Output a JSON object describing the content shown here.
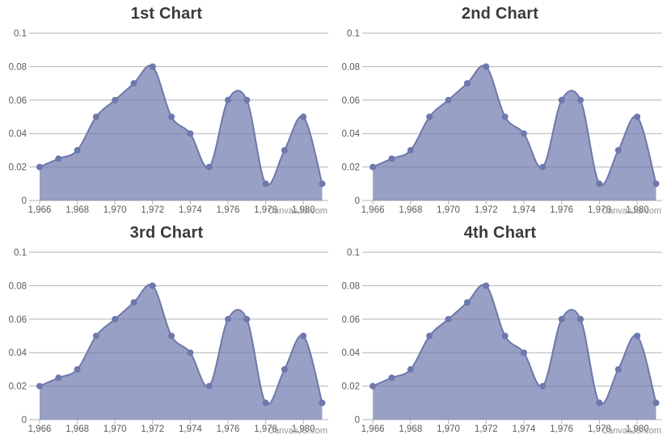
{
  "watermark": {
    "text": "CanvasJS.com"
  },
  "theme": {
    "series_color": "#6D78AD",
    "fill_opacity": 0.7,
    "grid_color": "#b3b3b3",
    "tick_color": "#b3b3b3",
    "label_color": "#5a5a5a",
    "title_color": "#3a3a3a",
    "watermark_color": "#8c8c8c",
    "background": "#ffffff"
  },
  "chart_data": [
    {
      "type": "area",
      "spline": true,
      "title": "1st Chart",
      "x": [
        1966,
        1967,
        1968,
        1969,
        1970,
        1971,
        1972,
        1973,
        1974,
        1975,
        1976,
        1977,
        1978,
        1979,
        1980,
        1981
      ],
      "values": [
        0.02,
        0.025,
        0.03,
        0.05,
        0.06,
        0.07,
        0.08,
        0.05,
        0.04,
        0.02,
        0.06,
        0.06,
        0.01,
        0.03,
        0.05,
        0.01
      ],
      "ylim": [
        0,
        0.1
      ],
      "y_ticks": [
        0,
        0.02,
        0.04,
        0.06,
        0.08,
        0.1
      ],
      "y_tick_labels": [
        "0",
        "0.02",
        "0.04",
        "0.06",
        "0.08",
        "0.1"
      ],
      "x_ticks": [
        1966,
        1968,
        1970,
        1972,
        1974,
        1976,
        1978,
        1980
      ],
      "x_tick_labels": [
        "1,966",
        "1,968",
        "1,970",
        "1,972",
        "1,974",
        "1,976",
        "1,978",
        "1,980"
      ],
      "grid": true,
      "legend": "none"
    },
    {
      "type": "area",
      "spline": true,
      "title": "2nd Chart",
      "x": [
        1966,
        1967,
        1968,
        1969,
        1970,
        1971,
        1972,
        1973,
        1974,
        1975,
        1976,
        1977,
        1978,
        1979,
        1980,
        1981
      ],
      "values": [
        0.02,
        0.025,
        0.03,
        0.05,
        0.06,
        0.07,
        0.08,
        0.05,
        0.04,
        0.02,
        0.06,
        0.06,
        0.01,
        0.03,
        0.05,
        0.01
      ],
      "ylim": [
        0,
        0.1
      ],
      "y_ticks": [
        0,
        0.02,
        0.04,
        0.06,
        0.08,
        0.1
      ],
      "y_tick_labels": [
        "0",
        "0.02",
        "0.04",
        "0.06",
        "0.08",
        "0.1"
      ],
      "x_ticks": [
        1966,
        1968,
        1970,
        1972,
        1974,
        1976,
        1978,
        1980
      ],
      "x_tick_labels": [
        "1,966",
        "1,968",
        "1,970",
        "1,972",
        "1,974",
        "1,976",
        "1,978",
        "1,980"
      ],
      "grid": true,
      "legend": "none"
    },
    {
      "type": "area",
      "spline": true,
      "title": "3rd Chart",
      "x": [
        1966,
        1967,
        1968,
        1969,
        1970,
        1971,
        1972,
        1973,
        1974,
        1975,
        1976,
        1977,
        1978,
        1979,
        1980,
        1981
      ],
      "values": [
        0.02,
        0.025,
        0.03,
        0.05,
        0.06,
        0.07,
        0.08,
        0.05,
        0.04,
        0.02,
        0.06,
        0.06,
        0.01,
        0.03,
        0.05,
        0.01
      ],
      "ylim": [
        0,
        0.1
      ],
      "y_ticks": [
        0,
        0.02,
        0.04,
        0.06,
        0.08,
        0.1
      ],
      "y_tick_labels": [
        "0",
        "0.02",
        "0.04",
        "0.06",
        "0.08",
        "0.1"
      ],
      "x_ticks": [
        1966,
        1968,
        1970,
        1972,
        1974,
        1976,
        1978,
        1980
      ],
      "x_tick_labels": [
        "1,966",
        "1,968",
        "1,970",
        "1,972",
        "1,974",
        "1,976",
        "1,978",
        "1,980"
      ],
      "grid": true,
      "legend": "none"
    },
    {
      "type": "area",
      "spline": true,
      "title": "4th Chart",
      "x": [
        1966,
        1967,
        1968,
        1969,
        1970,
        1971,
        1972,
        1973,
        1974,
        1975,
        1976,
        1977,
        1978,
        1979,
        1980,
        1981
      ],
      "values": [
        0.02,
        0.025,
        0.03,
        0.05,
        0.06,
        0.07,
        0.08,
        0.05,
        0.04,
        0.02,
        0.06,
        0.06,
        0.01,
        0.03,
        0.05,
        0.01
      ],
      "ylim": [
        0,
        0.1
      ],
      "y_ticks": [
        0,
        0.02,
        0.04,
        0.06,
        0.08,
        0.1
      ],
      "y_tick_labels": [
        "0",
        "0.02",
        "0.04",
        "0.06",
        "0.08",
        "0.1"
      ],
      "x_ticks": [
        1966,
        1968,
        1970,
        1972,
        1974,
        1976,
        1978,
        1980
      ],
      "x_tick_labels": [
        "1,966",
        "1,968",
        "1,970",
        "1,972",
        "1,974",
        "1,976",
        "1,978",
        "1,980"
      ],
      "grid": true,
      "legend": "none"
    }
  ]
}
